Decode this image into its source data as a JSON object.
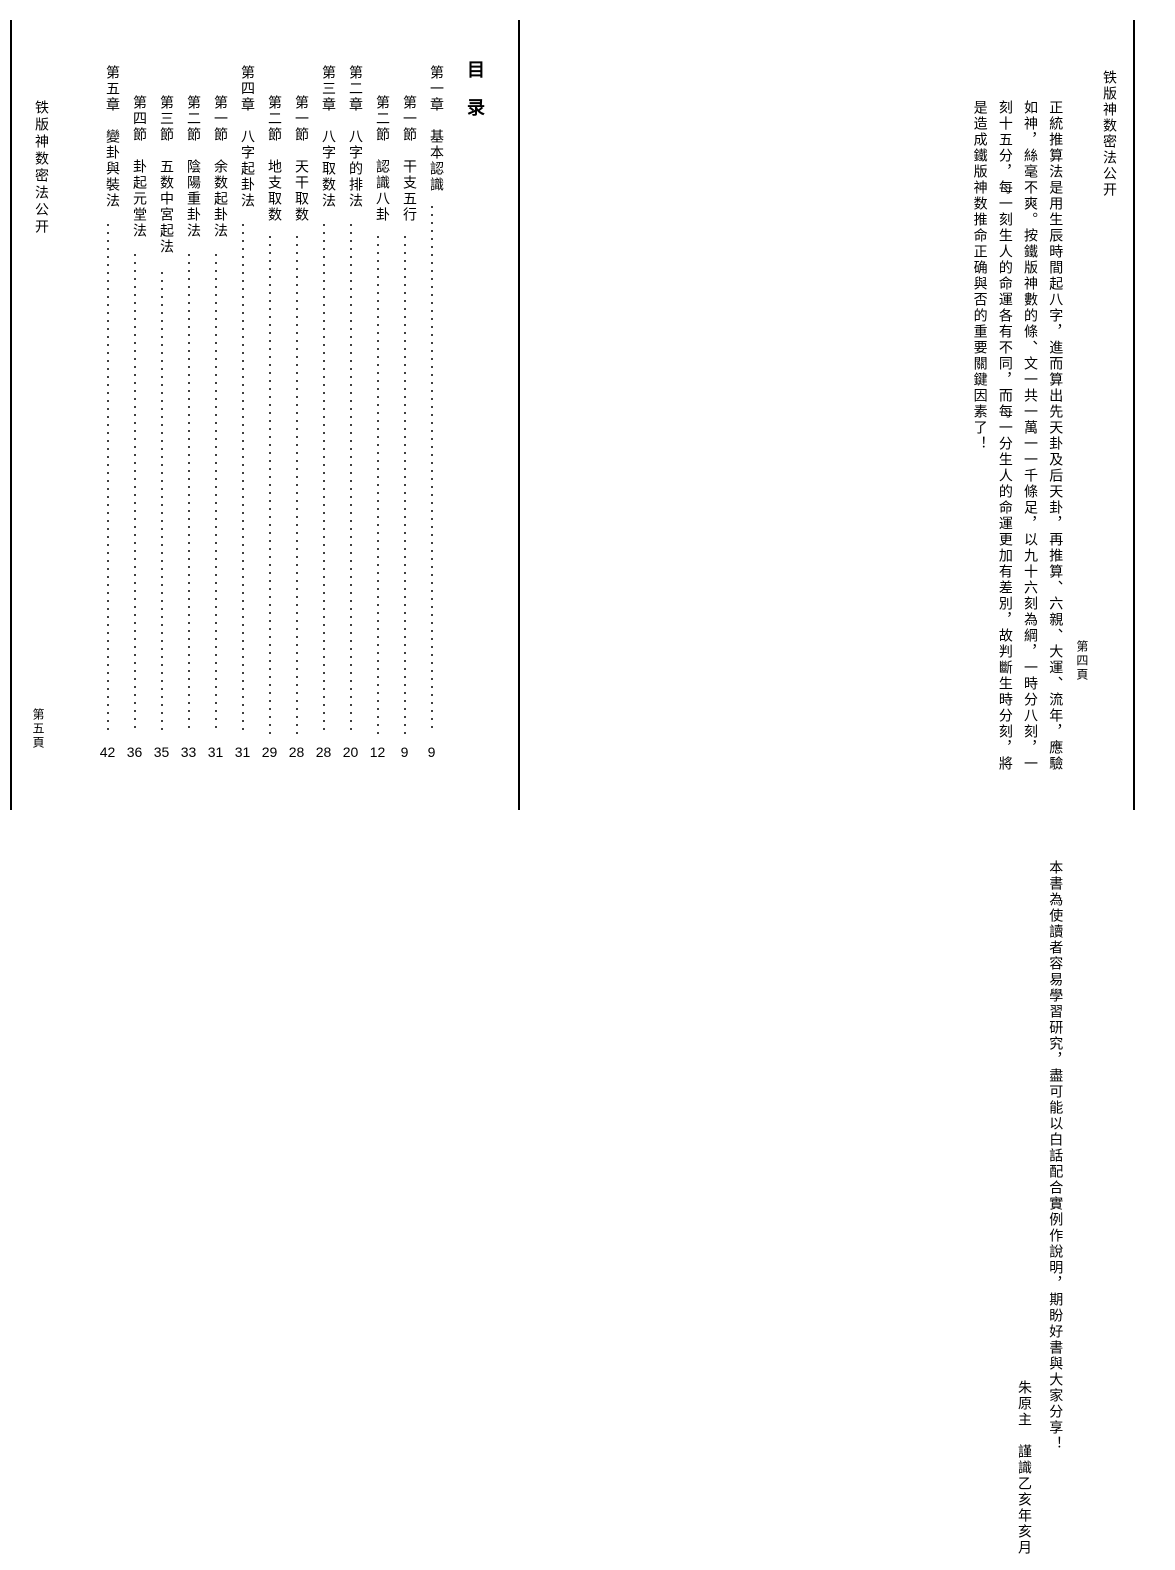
{
  "book_title_right": "铁版神数密法公开",
  "book_title_left": "铁版神数密法公开",
  "page_num_right": "第四頁",
  "page_num_left": "第五頁",
  "right_page": {
    "para1": "正統推算法是用生辰時間起八字，進而算出先天卦及后天卦，再推算、六親、大運、流年，應驗如神，絲毫不爽。按鐵版神數的條、文一共一萬一一千條足，以九十六刻為綱，一時分八刻，一刻十五分，每一刻生人的命運各有不同，而每一分生人的命運更加有差別，故判斷生時分刻，將是造成鐵版神数推命正确與否的重要關鍵因素了！",
    "para2": "本書為使讀者容易學習研究，盡可能以白話配合實例作說明，期盼好書與大家分享！",
    "signature": "朱原主　謹識乙亥年亥月"
  },
  "toc_heading": "目录",
  "toc": [
    {
      "label": "第一章　基本認識",
      "page": "9",
      "cls": "toc-dots long",
      "sub": false
    },
    {
      "label": "第一節　干支五行",
      "page": "9",
      "cls": "toc-dots longer",
      "sub": true
    },
    {
      "label": "第二節　認識八卦",
      "page": "12",
      "cls": "toc-dots longer",
      "sub": true
    },
    {
      "label": "第二章　八字的排法",
      "page": "20",
      "cls": "toc-dots long",
      "sub": false
    },
    {
      "label": "第三章　八字取数法",
      "page": "28",
      "cls": "toc-dots long",
      "sub": false
    },
    {
      "label": "第一節　天干取数",
      "page": "28",
      "cls": "toc-dots longer",
      "sub": true
    },
    {
      "label": "第二節　地支取数",
      "page": "29",
      "cls": "toc-dots longer",
      "sub": true
    },
    {
      "label": "第四章　八字起卦法",
      "page": "31",
      "cls": "toc-dots long",
      "sub": false
    },
    {
      "label": "第一節　余数起卦法",
      "page": "31",
      "cls": "toc-dots longer",
      "sub": true
    },
    {
      "label": "第二節　陰陽重卦法",
      "page": "33",
      "cls": "toc-dots longer",
      "sub": true
    },
    {
      "label": "第三節　五数中宮起法",
      "page": "35",
      "cls": "toc-dots longer",
      "sub": true
    },
    {
      "label": "第四節　卦起元堂法",
      "page": "36",
      "cls": "toc-dots longer",
      "sub": true
    },
    {
      "label": "第五章　變卦與裝法",
      "page": "42",
      "cls": "toc-dots long",
      "sub": false
    }
  ]
}
